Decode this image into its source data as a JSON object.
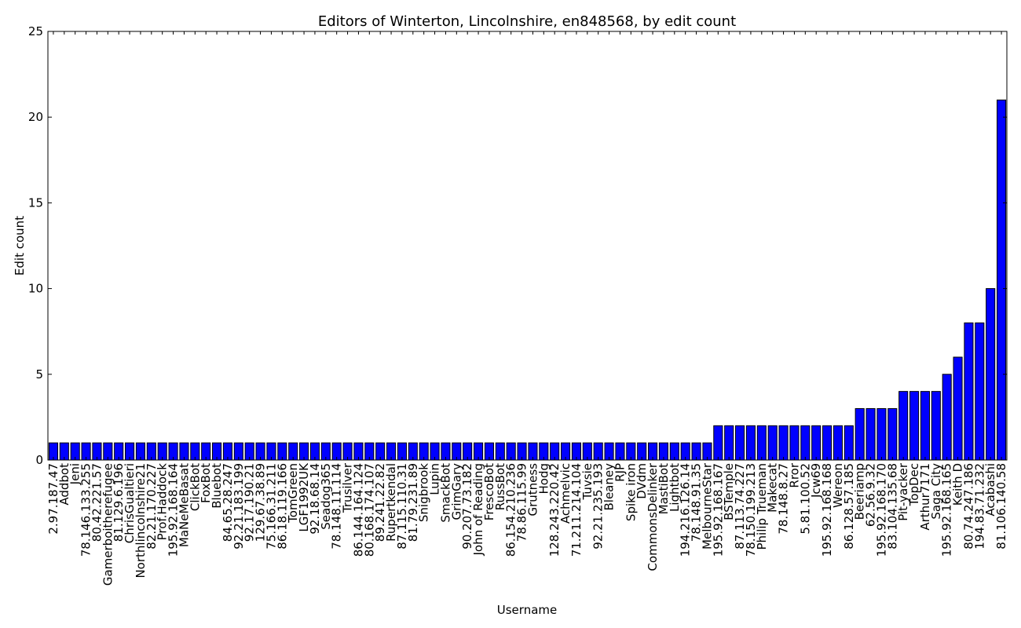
{
  "chart_data": {
    "type": "bar",
    "title": "Editors of Winterton, Lincolnshire, en848568, by edit count",
    "xlabel": "Username",
    "ylabel": "Edit count",
    "ylim": [
      0,
      25
    ],
    "yticks": [
      0,
      5,
      10,
      15,
      20,
      25
    ],
    "grid": false,
    "categories": [
      "2.97.187.47",
      "Addbot",
      "Jeni",
      "78.146.133.255",
      "80.42.221.57",
      "Gamerboitherefugee",
      "81.129.6.196",
      "ChrisGualtieri",
      "Northlincolnshire21",
      "82.21.170.227",
      "Prof.Haddock",
      "195.92.168.164",
      "MaNeMeBasat",
      "ClickBot",
      "FoxBot",
      "Bluebot",
      "84.65.28.247",
      "92.21.183.199",
      "92.17.190.21",
      "129.67.38.89",
      "75.166.31.211",
      "86.18.119.166",
      "TomGreen",
      "LGF1992UK",
      "92.18.68.14",
      "Seadog365",
      "78.148.11.114",
      "Trusilver",
      "86.144.164.124",
      "80.168.174.107",
      "89.241.22.82",
      "Rupertkendal",
      "87.115.110.31",
      "81.79.231.89",
      "Snigbrook",
      "Lupin",
      "SmackBot",
      "GrimGary",
      "90.207.73.182",
      "John of Reading",
      "FrescoBot",
      "RussBot",
      "86.154.210.236",
      "78.86.115.99",
      "Grutness",
      "Hodg",
      "128.243.220.42",
      "Achmelvic",
      "71.211.214.104",
      "Tuvsie",
      "92.21.235.193",
      "Bleaney",
      "RJP",
      "Spike iron",
      "DVdm",
      "CommonsDelinker",
      "MastiBot",
      "Lightbot",
      "194.216.126.14",
      "78.148.91.35",
      "MelbourneStar",
      "195.92.168.167",
      "BSTemple",
      "87.113.74.227",
      "78.150.199.213",
      "Philip Trueman",
      "Makecat",
      "78.148.8.27",
      "Rror",
      "5.81.100.52",
      "Jcw69",
      "195.92.168.168",
      "Wereon",
      "86.128.57.185",
      "Beeriamp",
      "62.56.9.32",
      "195.92.168.170",
      "83.104.135.68",
      "Pit-yacker",
      "TopDec",
      "Arthur7171",
      "Saga City",
      "195.92.168.165",
      "Keith D",
      "80.74.247.186",
      "194.83.71.232",
      "Acabashi",
      "81.106.140.58"
    ],
    "values": [
      1,
      1,
      1,
      1,
      1,
      1,
      1,
      1,
      1,
      1,
      1,
      1,
      1,
      1,
      1,
      1,
      1,
      1,
      1,
      1,
      1,
      1,
      1,
      1,
      1,
      1,
      1,
      1,
      1,
      1,
      1,
      1,
      1,
      1,
      1,
      1,
      1,
      1,
      1,
      1,
      1,
      1,
      1,
      1,
      1,
      1,
      1,
      1,
      1,
      1,
      1,
      1,
      1,
      1,
      1,
      1,
      1,
      1,
      1,
      1,
      1,
      2,
      2,
      2,
      2,
      2,
      2,
      2,
      2,
      2,
      2,
      2,
      2,
      2,
      3,
      3,
      3,
      3,
      4,
      4,
      4,
      4,
      5,
      6,
      8,
      8,
      10,
      21
    ],
    "colors": {
      "bar": "#0000ff",
      "edge": "#000000"
    }
  }
}
